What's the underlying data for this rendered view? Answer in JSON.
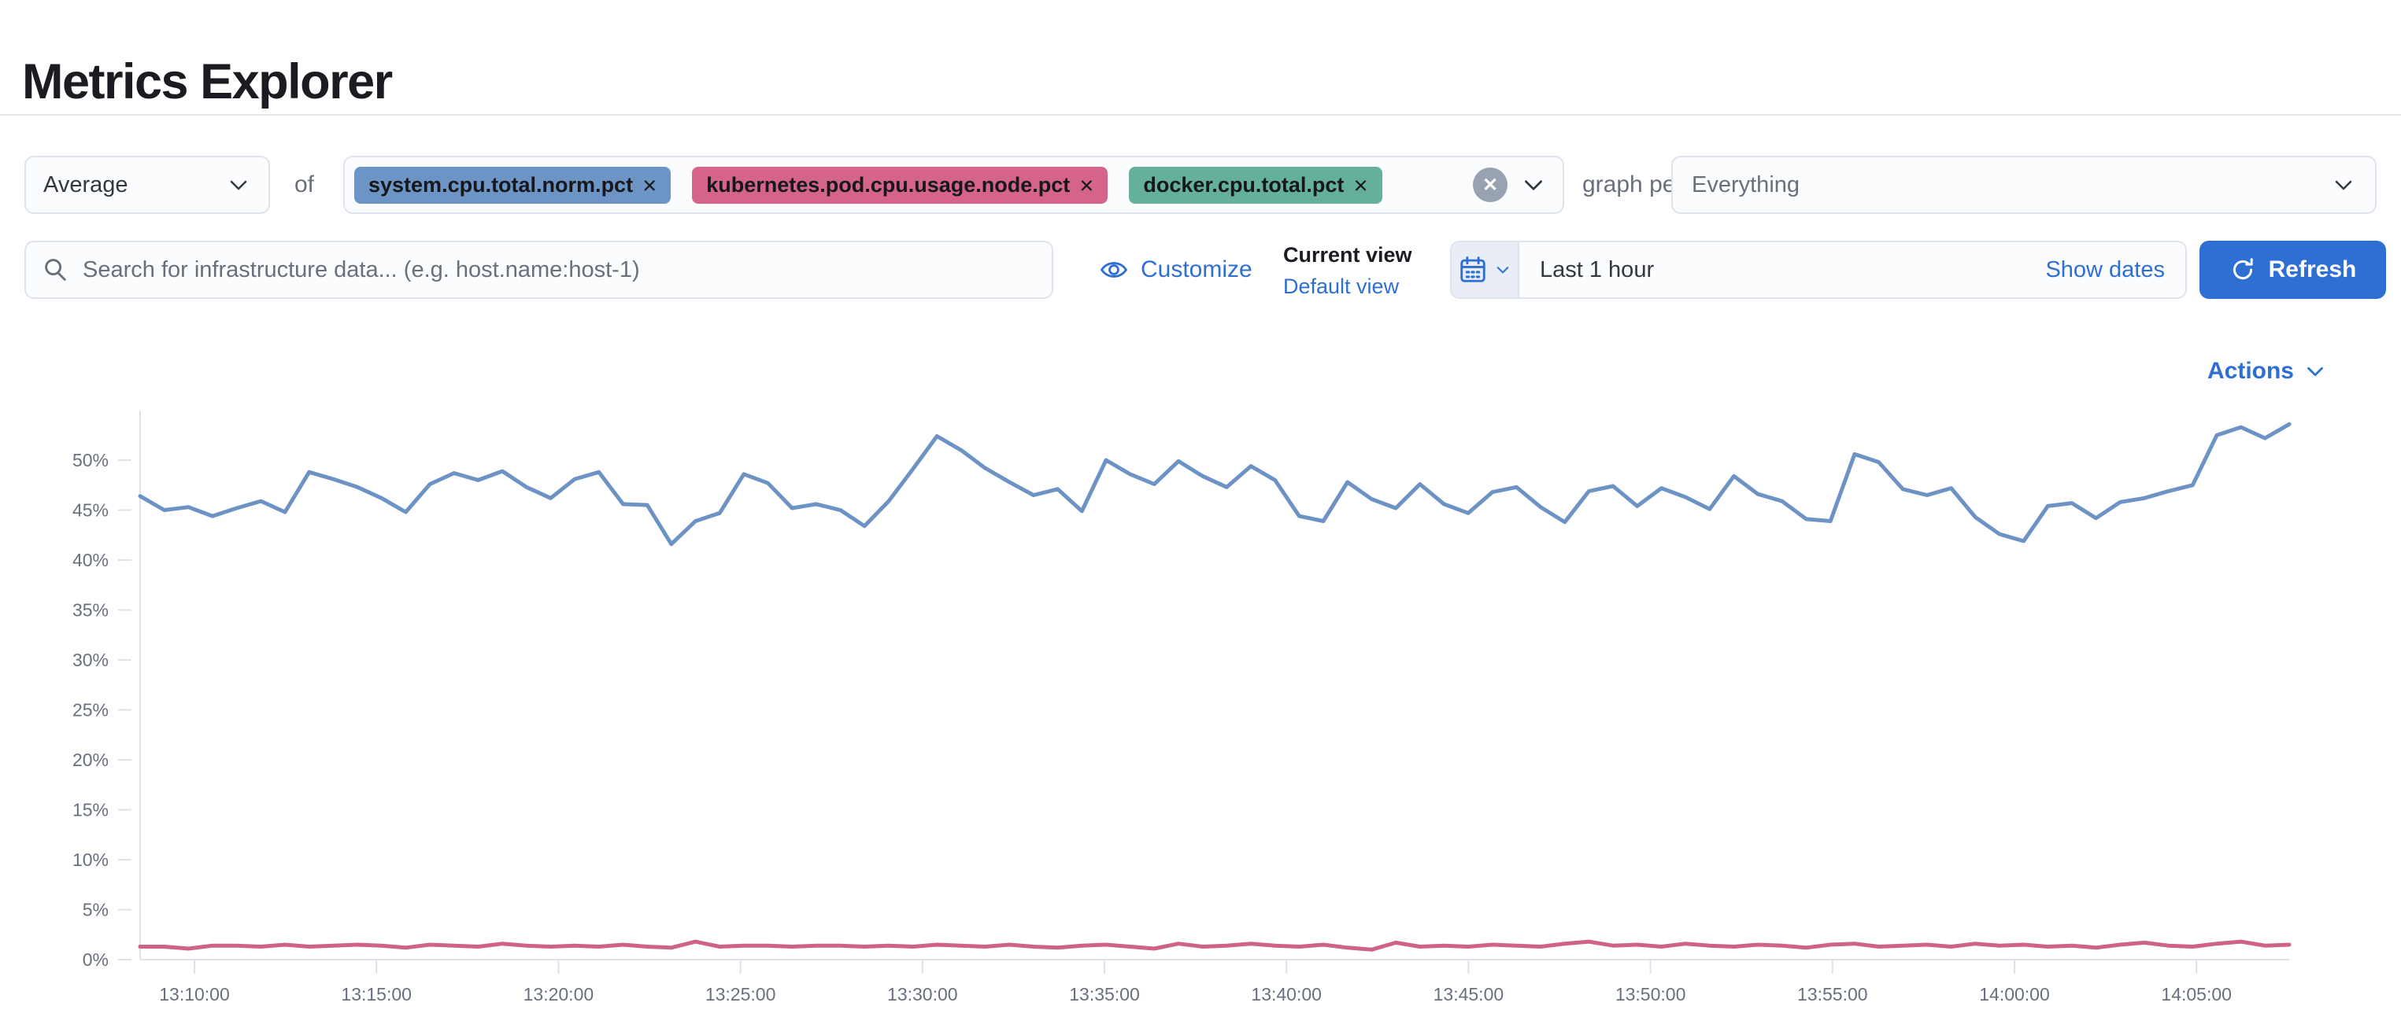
{
  "page": {
    "title": "Metrics Explorer"
  },
  "toolbar": {
    "aggregation": {
      "value": "Average"
    },
    "of_label": "of",
    "metrics": [
      {
        "label": "system.cpu.total.norm.pct",
        "color": "#6C95C6"
      },
      {
        "label": "kubernetes.pod.cpu.usage.node.pct",
        "color": "#D5648A"
      },
      {
        "label": "docker.cpu.total.pct",
        "color": "#65B09A"
      }
    ],
    "graph_per_label": "graph per",
    "group_by": {
      "value": "Everything"
    }
  },
  "searchbar": {
    "placeholder": "Search for infrastructure data... (e.g. host.name:host-1)",
    "customize_label": "Customize",
    "current_view_label": "Current view",
    "view_name": "Default view",
    "time_range": "Last 1 hour",
    "show_dates_label": "Show dates",
    "refresh_label": "Refresh"
  },
  "chart_header": {
    "actions_label": "Actions"
  },
  "icons": {
    "remove_metric": "×",
    "clear_all": "✕"
  },
  "colors": {
    "link_blue": "#2e6fd3",
    "series_blue": "#6C93C3",
    "series_pink": "#CF6287",
    "axis_line": "#dfe2e8",
    "axis_text": "#69707D"
  },
  "chart_data": {
    "type": "line",
    "title": "",
    "xlabel": "",
    "ylabel": "",
    "y_axis": {
      "unit": "%",
      "min": 0,
      "max": 55,
      "tick_labels": [
        "0%",
        "5%",
        "10%",
        "15%",
        "20%",
        "25%",
        "30%",
        "35%",
        "40%",
        "45%",
        "50%"
      ]
    },
    "x_axis": {
      "start_time": "13:08:30",
      "step_seconds": 40,
      "tick_labels": [
        "13:10:00",
        "13:15:00",
        "13:20:00",
        "13:25:00",
        "13:30:00",
        "13:35:00",
        "13:40:00",
        "13:45:00",
        "13:50:00",
        "13:55:00",
        "14:00:00",
        "14:05:00"
      ]
    },
    "grid": false,
    "legend_position": "none",
    "series": [
      {
        "name": "Average of system.cpu.total.norm.pct",
        "color": "#6C93C3",
        "values": [
          46.4,
          45.0,
          45.3,
          44.4,
          45.2,
          45.9,
          44.8,
          48.8,
          48.1,
          47.3,
          46.2,
          44.8,
          47.6,
          48.7,
          48.0,
          48.9,
          47.3,
          46.2,
          48.1,
          48.8,
          45.6,
          45.5,
          41.6,
          43.9,
          44.7,
          48.6,
          47.7,
          45.2,
          45.6,
          45.0,
          43.4,
          45.9,
          49.1,
          52.4,
          51.0,
          49.2,
          47.8,
          46.5,
          47.1,
          44.9,
          50.0,
          48.6,
          47.6,
          49.9,
          48.4,
          47.3,
          49.4,
          48.0,
          44.4,
          43.9,
          47.8,
          46.1,
          45.2,
          47.6,
          45.6,
          44.7,
          46.8,
          47.3,
          45.3,
          43.8,
          46.9,
          47.4,
          45.4,
          47.2,
          46.3,
          45.1,
          48.4,
          46.6,
          45.9,
          44.1,
          43.9,
          50.6,
          49.8,
          47.1,
          46.5,
          47.2,
          44.3,
          42.6,
          41.9,
          45.4,
          45.7,
          44.2,
          45.8,
          46.2,
          46.9,
          47.5,
          52.5,
          53.3,
          52.2,
          53.6
        ]
      },
      {
        "name": "Average of kubernetes.pod.cpu.usage.node.pct",
        "color": "#CF6287",
        "values": [
          1.3,
          1.3,
          1.1,
          1.4,
          1.4,
          1.3,
          1.5,
          1.3,
          1.4,
          1.5,
          1.4,
          1.2,
          1.5,
          1.4,
          1.3,
          1.6,
          1.4,
          1.3,
          1.4,
          1.3,
          1.5,
          1.3,
          1.2,
          1.8,
          1.3,
          1.4,
          1.4,
          1.3,
          1.4,
          1.4,
          1.3,
          1.4,
          1.3,
          1.5,
          1.4,
          1.3,
          1.5,
          1.3,
          1.2,
          1.4,
          1.5,
          1.3,
          1.1,
          1.6,
          1.3,
          1.4,
          1.6,
          1.4,
          1.3,
          1.5,
          1.2,
          1.0,
          1.7,
          1.3,
          1.4,
          1.3,
          1.5,
          1.4,
          1.3,
          1.6,
          1.8,
          1.4,
          1.5,
          1.3,
          1.6,
          1.4,
          1.3,
          1.5,
          1.4,
          1.2,
          1.5,
          1.6,
          1.3,
          1.4,
          1.5,
          1.3,
          1.6,
          1.4,
          1.5,
          1.3,
          1.4,
          1.2,
          1.5,
          1.7,
          1.4,
          1.3,
          1.6,
          1.8,
          1.4,
          1.5
        ]
      }
    ]
  }
}
